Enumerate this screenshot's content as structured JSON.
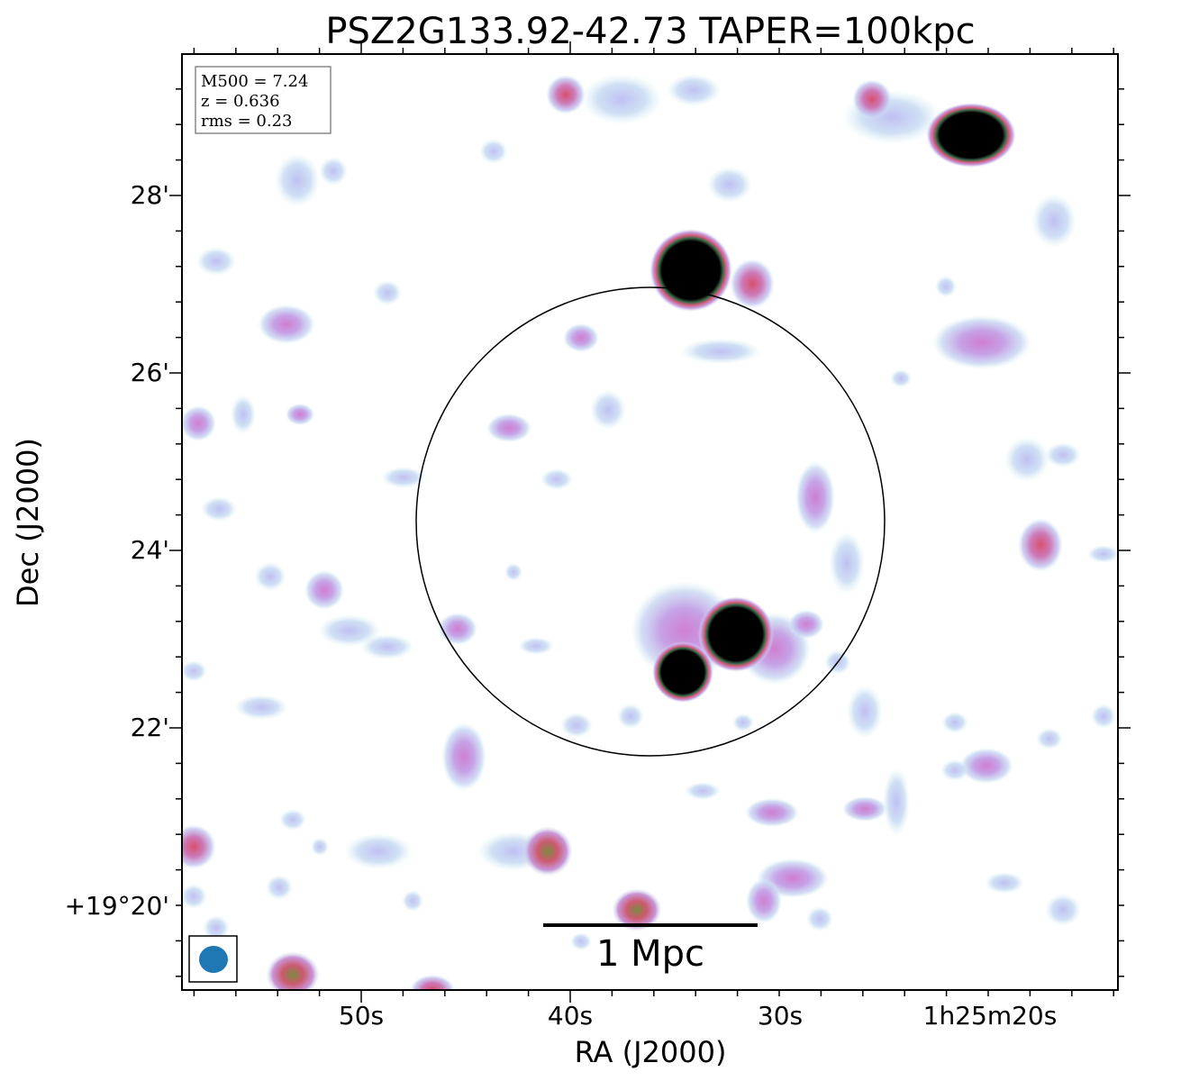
{
  "title": "PSZ2G133.92-42.73 TAPER=100kpc",
  "info_box": {
    "m500": "M500 = 7.24",
    "z": "z = 0.636",
    "rms": "rms = 0.23"
  },
  "x_axis": {
    "label": "RA (J2000)",
    "ticks": [
      "50s",
      "40s",
      "30s",
      "1h25m20s"
    ]
  },
  "y_axis": {
    "label": "Dec (J2000)",
    "ticks": [
      "28'",
      "26'",
      "24'",
      "22'",
      "+19°20'"
    ]
  },
  "scale_bar": {
    "label": "1 Mpc"
  },
  "colors": {
    "beam": "#1f77b4",
    "diffuse_low": "#bfe6ea",
    "diffuse_mid": "#b8b8f0",
    "diffuse_high": "#c97bc9",
    "source_hot": "#d05a78",
    "source_core": "#000000"
  },
  "icons": {
    "beam": "beam-ellipse-icon"
  }
}
